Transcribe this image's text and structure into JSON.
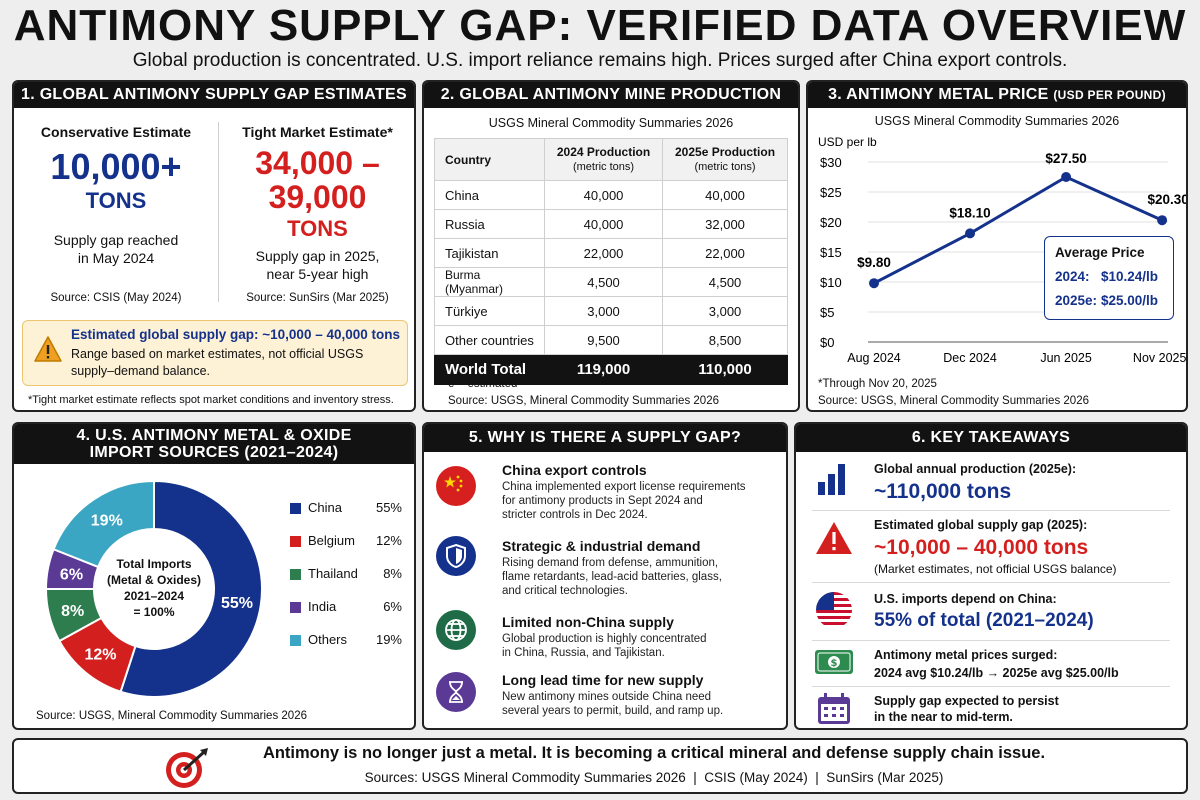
{
  "header": {
    "title": "ANTIMONY SUPPLY GAP: VERIFIED DATA OVERVIEW",
    "subtitle": "Global production is concentrated. U.S. import reliance remains high. Prices surged after China export controls."
  },
  "panel1": {
    "heading": "1. GLOBAL ANTIMONY SUPPLY GAP ESTIMATES",
    "conservative": {
      "label": "Conservative Estimate",
      "value": "10,000+",
      "unit": "TONS",
      "desc1": "Supply gap reached",
      "desc2": "in May 2024",
      "source": "Source: CSIS (May 2024)"
    },
    "tight": {
      "label": "Tight Market Estimate*",
      "value1": "34,000 –",
      "value2": "39,000",
      "unit": "TONS",
      "desc1": "Supply gap in 2025,",
      "desc2": "near 5-year high",
      "source": "Source: SunSirs (Mar 2025)"
    },
    "note_title": "Estimated global supply gap: ~10,000 – 40,000 tons",
    "note_body1": "Range based on market estimates, not official USGS",
    "note_body2": "supply–demand balance.",
    "footnote": "*Tight market estimate reflects spot market conditions and inventory stress."
  },
  "panel2": {
    "heading": "2. GLOBAL ANTIMONY MINE PRODUCTION",
    "source_top": "USGS Mineral Commodity Summaries 2026",
    "col_country": "Country",
    "col_2024": "2024 Production",
    "col_2025": "2025e Production",
    "col_unit": "(metric tons)",
    "rows": [
      {
        "country": "China",
        "y2024": "40,000",
        "y2025": "40,000"
      },
      {
        "country": "Russia",
        "y2024": "40,000",
        "y2025": "32,000"
      },
      {
        "country": "Tajikistan",
        "y2024": "22,000",
        "y2025": "22,000"
      },
      {
        "country": "Burma (Myanmar)",
        "y2024": "4,500",
        "y2025": "4,500"
      },
      {
        "country": "Türkiye",
        "y2024": "3,000",
        "y2025": "3,000"
      },
      {
        "country": "Other countries",
        "y2024": "9,500",
        "y2025": "8,500"
      }
    ],
    "total": {
      "country": "World Total",
      "y2024": "119,000",
      "y2025": "110,000"
    },
    "note": "e = estimated",
    "source": "Source: USGS, Mineral Commodity Summaries 2026"
  },
  "panel3": {
    "heading": "3. ANTIMONY METAL PRICE",
    "heading_unit": "(USD PER POUND)",
    "source_top": "USGS Mineral Commodity Summaries 2026",
    "avg_title": "Average Price",
    "avg_2024_label": "2024:",
    "avg_2024_value": "$10.24/lb",
    "avg_2025_label": "2025e:",
    "avg_2025_value": "$25.00/lb",
    "footnote": "*Through Nov 20, 2025",
    "source": "Source: USGS, Mineral Commodity Summaries 2026"
  },
  "panel4": {
    "heading1": "4. U.S. ANTIMONY METAL & OXIDE",
    "heading2": "IMPORT SOURCES (2021–2024)",
    "center1": "Total Imports",
    "center2": "(Metal & Oxides)",
    "center3": "2021–2024",
    "center4": "= 100%",
    "source": "Source: USGS, Mineral Commodity Summaries 2026"
  },
  "panel5": {
    "heading": "5. WHY IS THERE A SUPPLY GAP?",
    "items": [
      {
        "title": "China export controls",
        "l1": "China implemented export license requirements",
        "l2": "for antimony products in Sept 2024 and",
        "l3": "stricter controls in Dec 2024."
      },
      {
        "title": "Strategic & industrial demand",
        "l1": "Rising demand from defense, ammunition,",
        "l2": "flame retardants, lead-acid batteries, glass,",
        "l3": "and critical technologies."
      },
      {
        "title": "Limited non-China supply",
        "l1": "Global production is highly concentrated",
        "l2": "in China, Russia, and Tajikistan.",
        "l3": ""
      },
      {
        "title": "Long lead time for new supply",
        "l1": "New antimony mines outside China need",
        "l2": "several years to permit, build, and ramp up.",
        "l3": ""
      }
    ]
  },
  "panel6": {
    "heading": "6. KEY TAKEAWAYS",
    "k1_h": "Global annual production (2025e):",
    "k1_big": "~110,000 tons",
    "k2_h": "Estimated global supply gap (2025):",
    "k2_big": "~10,000 – 40,000 tons",
    "k2_sub": "(Market estimates, not official USGS balance)",
    "k3_h": "U.S. imports depend on China:",
    "k3_big": "55% of total (2021–2024)",
    "k4_h": "Antimony metal prices surged:",
    "k4_sub": "2024 avg $10.24/lb → 2025e avg $25.00/lb",
    "k5_h1": "Supply gap expected to persist",
    "k5_h2": "in the near to mid-term."
  },
  "footer": {
    "headline": "Antimony is no longer just a metal. It is becoming a critical mineral and defense supply chain issue.",
    "sources": "Sources: USGS Mineral Commodity Summaries 2026  |  CSIS (May 2024)  |  SunSirs (Mar 2025)"
  },
  "icons": {
    "warning": "warning-icon",
    "bar_chart": "bar-chart-icon",
    "alert": "alert-icon",
    "us_flag": "us-flag-icon",
    "money": "money-icon",
    "calendar": "calendar-icon",
    "china_flag": "china-flag-icon",
    "shield": "shield-icon",
    "globe": "globe-icon",
    "hourglass": "hourglass-icon",
    "target": "target-icon"
  },
  "colors": {
    "blue": "#14318c",
    "red": "#d41f1f",
    "green": "#2e7d4f",
    "purple": "#5b3a96",
    "teal": "#3aa6c4"
  },
  "chart_data": [
    {
      "type": "line",
      "ylabel": "USD per lb",
      "x": [
        "Aug 2024",
        "Dec 2024",
        "Jun 2025",
        "Nov 2025*"
      ],
      "series": [
        {
          "values": [
            9.8,
            18.1,
            27.5,
            20.3
          ]
        }
      ],
      "data_labels": [
        "$9.80",
        "$18.10",
        "$27.50",
        "$20.30"
      ],
      "yticks": [
        "$30",
        "$25",
        "$20",
        "$15",
        "$10",
        "$5",
        "$0"
      ],
      "ylim": [
        0,
        30
      ],
      "color": "#14318c"
    },
    {
      "type": "pie",
      "categories": [
        "China",
        "Belgium",
        "Thailand",
        "India",
        "Others"
      ],
      "values": [
        55,
        12,
        8,
        6,
        19
      ],
      "value_labels": [
        "55%",
        "12%",
        "8%",
        "6%",
        "19%"
      ],
      "colors": [
        "#14318c",
        "#d41f1f",
        "#2e7d4f",
        "#5b3a96",
        "#3aa6c4"
      ],
      "legend": "right"
    }
  ]
}
